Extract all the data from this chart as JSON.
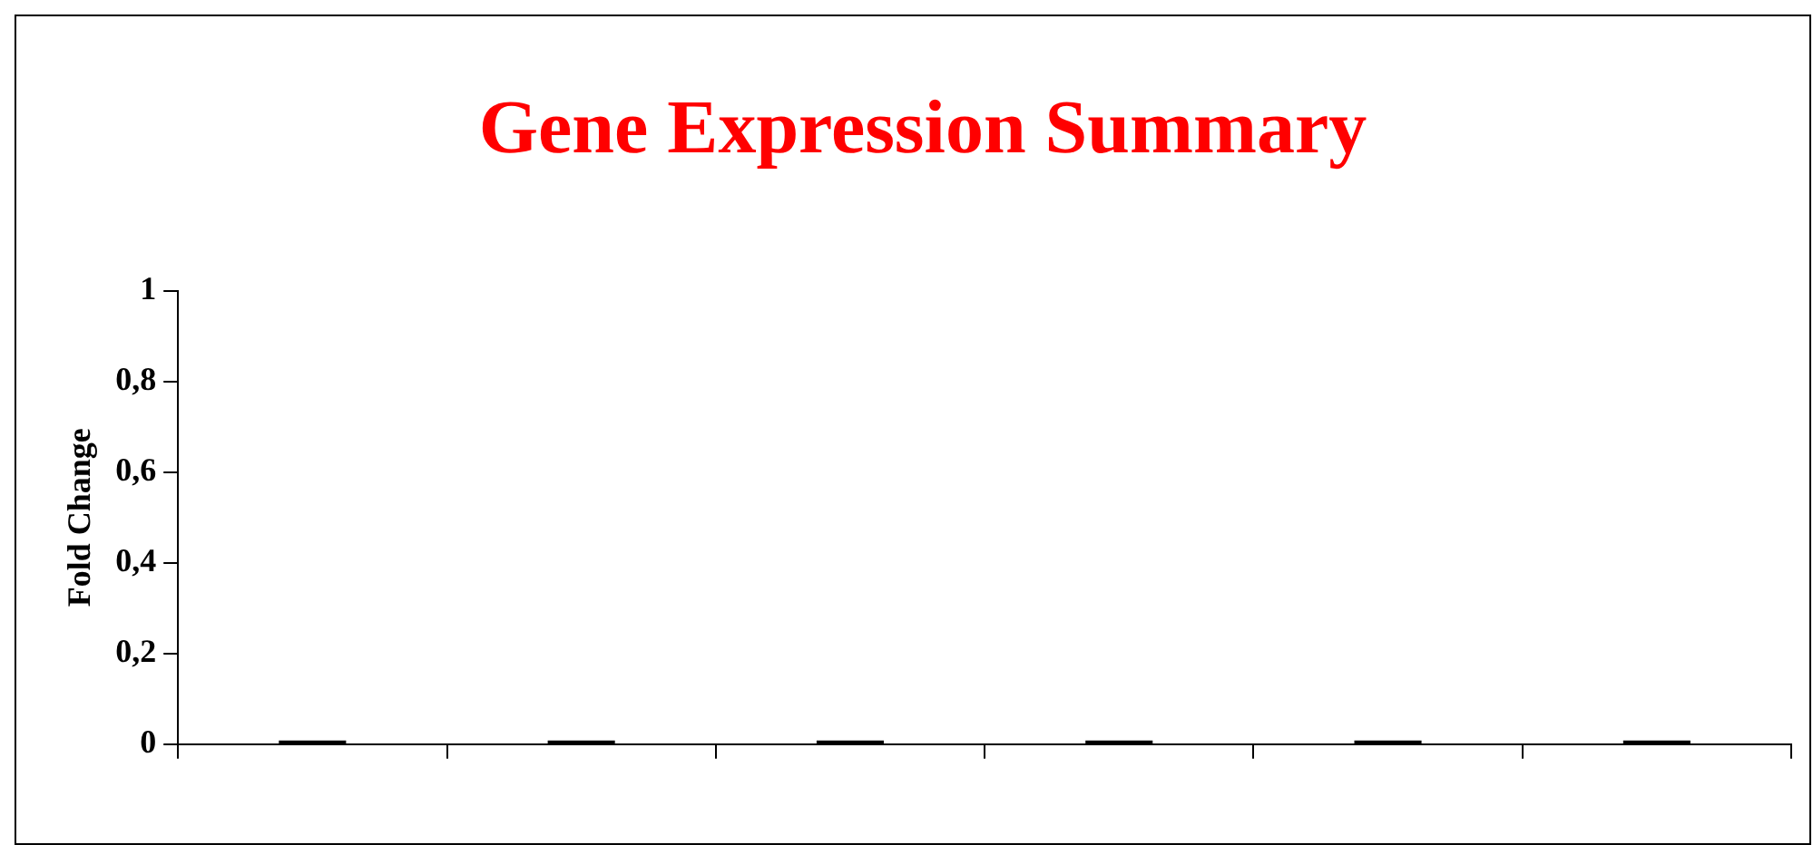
{
  "chart_data": {
    "type": "bar",
    "title": "Gene Expression Summary",
    "ylabel": "Fold Change",
    "categories": [
      null,
      null,
      null,
      null,
      null,
      null
    ],
    "values": [
      0,
      0,
      0,
      0,
      0,
      0
    ],
    "color": "#000000",
    "ylim": [
      0,
      1
    ],
    "yticks": [
      0,
      {
        "value": 0.2,
        "label": "0,2"
      },
      {
        "value": 0.4,
        "label": "0,4"
      },
      {
        "value": 0.6,
        "label": "0,6"
      },
      {
        "value": 0.8,
        "label": "0,8"
      },
      1
    ],
    "grid": false,
    "legend": false
  }
}
